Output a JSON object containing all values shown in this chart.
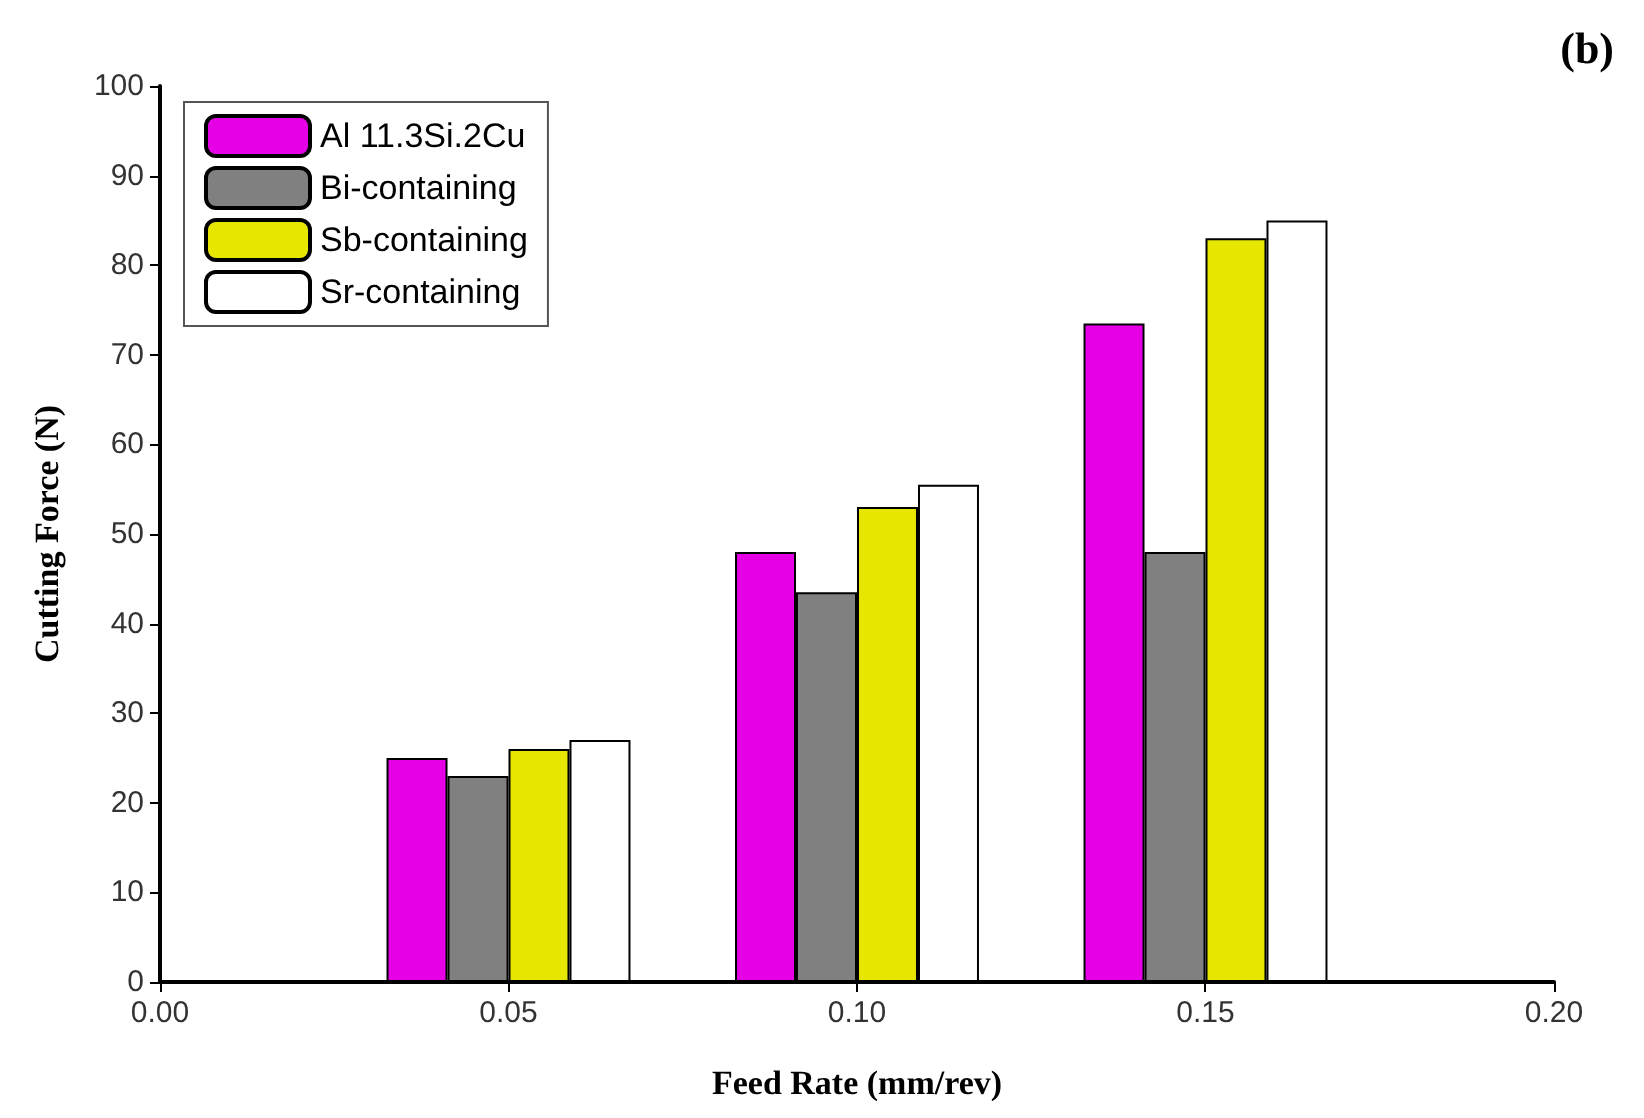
{
  "chart_data": {
    "type": "bar",
    "title": "(b)",
    "xlabel": "Feed Rate (mm/rev)",
    "ylabel": "Cutting Force (N)",
    "x": [
      0.05,
      0.1,
      0.15
    ],
    "series": [
      {
        "name": "Al 11.3Si.2Cu",
        "color": "#e600e6",
        "values": [
          25,
          48,
          73.5
        ]
      },
      {
        "name": "Bi-containing",
        "color": "#808080",
        "values": [
          23,
          43.5,
          48
        ]
      },
      {
        "name": "Sb-containing",
        "color": "#e6e600",
        "values": [
          26,
          53,
          83
        ]
      },
      {
        "name": "Sr-containing",
        "color": "#ffffff",
        "values": [
          27,
          55.5,
          85
        ]
      }
    ],
    "xlim": [
      0,
      0.2
    ],
    "xticks": [
      {
        "value": 0,
        "label": "0.00"
      },
      {
        "value": 0.05,
        "label": "0.05"
      },
      {
        "value": 0.1,
        "label": "0.10"
      },
      {
        "value": 0.15,
        "label": "0.15"
      },
      {
        "value": 0.2,
        "label": "0.20"
      }
    ],
    "ylim": [
      0,
      100
    ],
    "yticks": [
      0,
      10,
      20,
      30,
      40,
      50,
      60,
      70,
      80,
      90,
      100
    ],
    "grid": false,
    "legend": "top left"
  }
}
